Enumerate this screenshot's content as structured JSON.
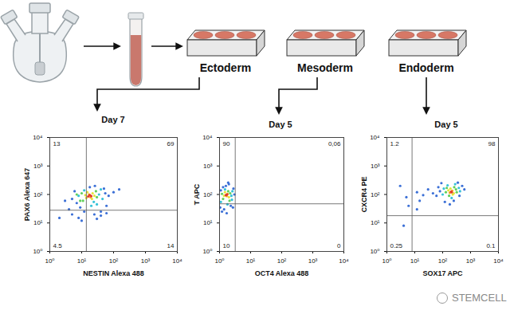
{
  "diagram": {
    "stages": [
      "Ectoderm",
      "Mesoderm",
      "Endoderm"
    ]
  },
  "watermark": "STEMCELL",
  "chart_data": [
    {
      "type": "scatter",
      "title": "Day 7",
      "x_label": "NESTIN Alexa 488",
      "y_label": "PAX6 Alexa 647",
      "log": true,
      "xlim": [
        1,
        10000
      ],
      "ylim": [
        1,
        10000
      ],
      "xticks": [
        {
          "value": 1,
          "label": "10⁰"
        },
        {
          "value": 10,
          "label": "10¹"
        },
        {
          "value": 100,
          "label": "10²"
        },
        {
          "value": 1000,
          "label": "10³"
        },
        {
          "value": 10000,
          "label": "10⁴"
        }
      ],
      "yticks": [
        {
          "value": 1,
          "label": "10⁰"
        },
        {
          "value": 10,
          "label": "10¹"
        },
        {
          "value": 100,
          "label": "10²"
        },
        {
          "value": 1000,
          "label": "10³"
        },
        {
          "value": 10000,
          "label": "10⁴"
        }
      ],
      "gates": {
        "x": 14,
        "y": 28
      },
      "quadrants": {
        "upper_left": 13,
        "upper_right": 69,
        "lower_left": 4.5,
        "lower_right": 14
      },
      "x": [
        4,
        3,
        100,
        12,
        60,
        150,
        2,
        40,
        8,
        5,
        10,
        25,
        40,
        60,
        30,
        6,
        55,
        70,
        5,
        26,
        9,
        18,
        50,
        7,
        40,
        45,
        8,
        20,
        30,
        12,
        35,
        24,
        11,
        28,
        30,
        10,
        9,
        7,
        14,
        22,
        25,
        13,
        21,
        15,
        19,
        17,
        16,
        18,
        20
      ],
      "values": [
        30,
        60,
        120,
        25,
        40,
        150,
        15,
        25,
        15,
        20,
        12,
        20,
        18,
        22,
        14,
        130,
        110,
        90,
        70,
        200,
        35,
        180,
        160,
        50,
        150,
        70,
        90,
        40,
        45,
        140,
        100,
        55,
        60,
        130,
        80,
        110,
        60,
        100,
        75,
        110,
        90,
        95,
        70,
        120,
        80,
        100,
        85,
        95,
        88
      ],
      "colors": [
        "#3b6fd6",
        "#3b6fd6",
        "#3b6fd6",
        "#3b6fd6",
        "#3b6fd6",
        "#3b6fd6",
        "#3b6fd6",
        "#3b6fd6",
        "#3b6fd6",
        "#3b6fd6",
        "#3b6fd6",
        "#3b6fd6",
        "#3b6fd6",
        "#3b6fd6",
        "#3b6fd6",
        "#3b6fd6",
        "#3b6fd6",
        "#3b6fd6",
        "#3b6fd6",
        "#3b6fd6",
        "#3b6fd6",
        "#3b6fd6",
        "#3b6fd6",
        "#3b6fd6",
        "#36c2d8",
        "#36c2d8",
        "#36c2d8",
        "#36c2d8",
        "#36c2d8",
        "#36c2d8",
        "#36c2d8",
        "#36c2d8",
        "#62d05a",
        "#62d05a",
        "#62d05a",
        "#62d05a",
        "#62d05a",
        "#62d05a",
        "#e6e33a",
        "#e6e33a",
        "#e6e33a",
        "#e6e33a",
        "#e6e33a",
        "#e6e33a",
        "#f4a32a",
        "#f4a32a",
        "#e2382c",
        "#e2382c",
        "#e2382c"
      ]
    },
    {
      "type": "scatter",
      "title": "Day 5",
      "x_label": "OCT4 Alexa 488",
      "y_label": "T APC",
      "log": true,
      "xlim": [
        1,
        10000
      ],
      "ylim": [
        1,
        10000
      ],
      "xticks": [
        {
          "value": 1,
          "label": "10⁰"
        },
        {
          "value": 10,
          "label": "10¹"
        },
        {
          "value": 100,
          "label": "10²"
        },
        {
          "value": 1000,
          "label": "10³"
        },
        {
          "value": 10000,
          "label": "10⁴"
        }
      ],
      "yticks": [
        {
          "value": 1,
          "label": "10⁰"
        },
        {
          "value": 10,
          "label": "10¹"
        },
        {
          "value": 100,
          "label": "10²"
        },
        {
          "value": 1000,
          "label": "10³"
        },
        {
          "value": 10000,
          "label": "10⁴"
        }
      ],
      "gates": {
        "x": 3.2,
        "y": 47
      },
      "quadrants": {
        "upper_left": 90,
        "upper_right": 0.06,
        "lower_left": 10,
        "lower_right": 0
      },
      "quadrant_labels": {
        "upper_right": "0,06"
      },
      "x": [
        1.05,
        2.8,
        1.4,
        2.0,
        3.0,
        1.2,
        2.3,
        1.7,
        2.7,
        1.1,
        1.9,
        1.3,
        1.6,
        1.1,
        2.6,
        1.8,
        2.5,
        1.5,
        2.4,
        1.3,
        2.2,
        2.1,
        1.2,
        1.9,
        1.5,
        2.0,
        1.4,
        1.8,
        1.7,
        1.6,
        1.75
      ],
      "values": [
        35,
        160,
        30,
        230,
        100,
        25,
        40,
        22,
        35,
        140,
        260,
        180,
        200,
        55,
        130,
        45,
        65,
        150,
        90,
        70,
        110,
        60,
        105,
        130,
        120,
        80,
        90,
        105,
        88,
        95,
        100
      ],
      "colors": [
        "#3b6fd6",
        "#3b6fd6",
        "#3b6fd6",
        "#3b6fd6",
        "#3b6fd6",
        "#3b6fd6",
        "#3b6fd6",
        "#3b6fd6",
        "#3b6fd6",
        "#3b6fd6",
        "#3b6fd6",
        "#3b6fd6",
        "#3b6fd6",
        "#36c2d8",
        "#36c2d8",
        "#36c2d8",
        "#36c2d8",
        "#36c2d8",
        "#36c2d8",
        "#62d05a",
        "#62d05a",
        "#62d05a",
        "#62d05a",
        "#62d05a",
        "#e6e33a",
        "#e6e33a",
        "#e6e33a",
        "#f4a32a",
        "#f4a32a",
        "#e2382c",
        "#e2382c"
      ]
    },
    {
      "type": "scatter",
      "title": "Day 5",
      "x_label": "SOX17 APC",
      "y_label": "CXCR4 PE",
      "log": true,
      "xlim": [
        1,
        10000
      ],
      "ylim": [
        1,
        10000
      ],
      "xticks": [
        {
          "value": 1,
          "label": "10⁰"
        },
        {
          "value": 10,
          "label": "10¹"
        },
        {
          "value": 100,
          "label": "10²"
        },
        {
          "value": 1000,
          "label": "10³"
        },
        {
          "value": 10000,
          "label": "10⁴"
        }
      ],
      "yticks": [
        {
          "value": 1,
          "label": "10⁰"
        },
        {
          "value": 10,
          "label": "10¹"
        },
        {
          "value": 100,
          "label": "10²"
        },
        {
          "value": 1000,
          "label": "10³"
        },
        {
          "value": 10000,
          "label": "10⁴"
        }
      ],
      "gates": {
        "x": 8,
        "y": 18
      },
      "quadrants": {
        "upper_left": 1.2,
        "upper_right": 98,
        "lower_left": 0.25,
        "lower_right": 0.1
      },
      "x": [
        5,
        3,
        6,
        4,
        12,
        20,
        30,
        45,
        15,
        12,
        80,
        500,
        60,
        250,
        350,
        70,
        600,
        120,
        180,
        400,
        90,
        100,
        380,
        210,
        150,
        420,
        110,
        280,
        130,
        300,
        170,
        260,
        140,
        320,
        160,
        250,
        190,
        230,
        180,
        220,
        200,
        210
      ],
      "values": [
        80,
        200,
        40,
        8,
        120,
        95,
        150,
        110,
        60,
        30,
        130,
        200,
        90,
        60,
        260,
        180,
        150,
        55,
        45,
        90,
        250,
        100,
        170,
        75,
        210,
        130,
        160,
        230,
        120,
        150,
        90,
        180,
        170,
        120,
        140,
        110,
        160,
        100,
        115,
        135,
        125,
        120
      ],
      "colors": [
        "#3b6fd6",
        "#3b6fd6",
        "#3b6fd6",
        "#3b6fd6",
        "#3b6fd6",
        "#3b6fd6",
        "#3b6fd6",
        "#3b6fd6",
        "#3b6fd6",
        "#3b6fd6",
        "#3b6fd6",
        "#3b6fd6",
        "#3b6fd6",
        "#3b6fd6",
        "#3b6fd6",
        "#3b6fd6",
        "#3b6fd6",
        "#3b6fd6",
        "#3b6fd6",
        "#3b6fd6",
        "#3b6fd6",
        "#36c2d8",
        "#36c2d8",
        "#36c2d8",
        "#36c2d8",
        "#36c2d8",
        "#36c2d8",
        "#36c2d8",
        "#62d05a",
        "#62d05a",
        "#62d05a",
        "#62d05a",
        "#62d05a",
        "#62d05a",
        "#e6e33a",
        "#e6e33a",
        "#e6e33a",
        "#e6e33a",
        "#f4a32a",
        "#f4a32a",
        "#e2382c",
        "#e2382c"
      ]
    }
  ]
}
